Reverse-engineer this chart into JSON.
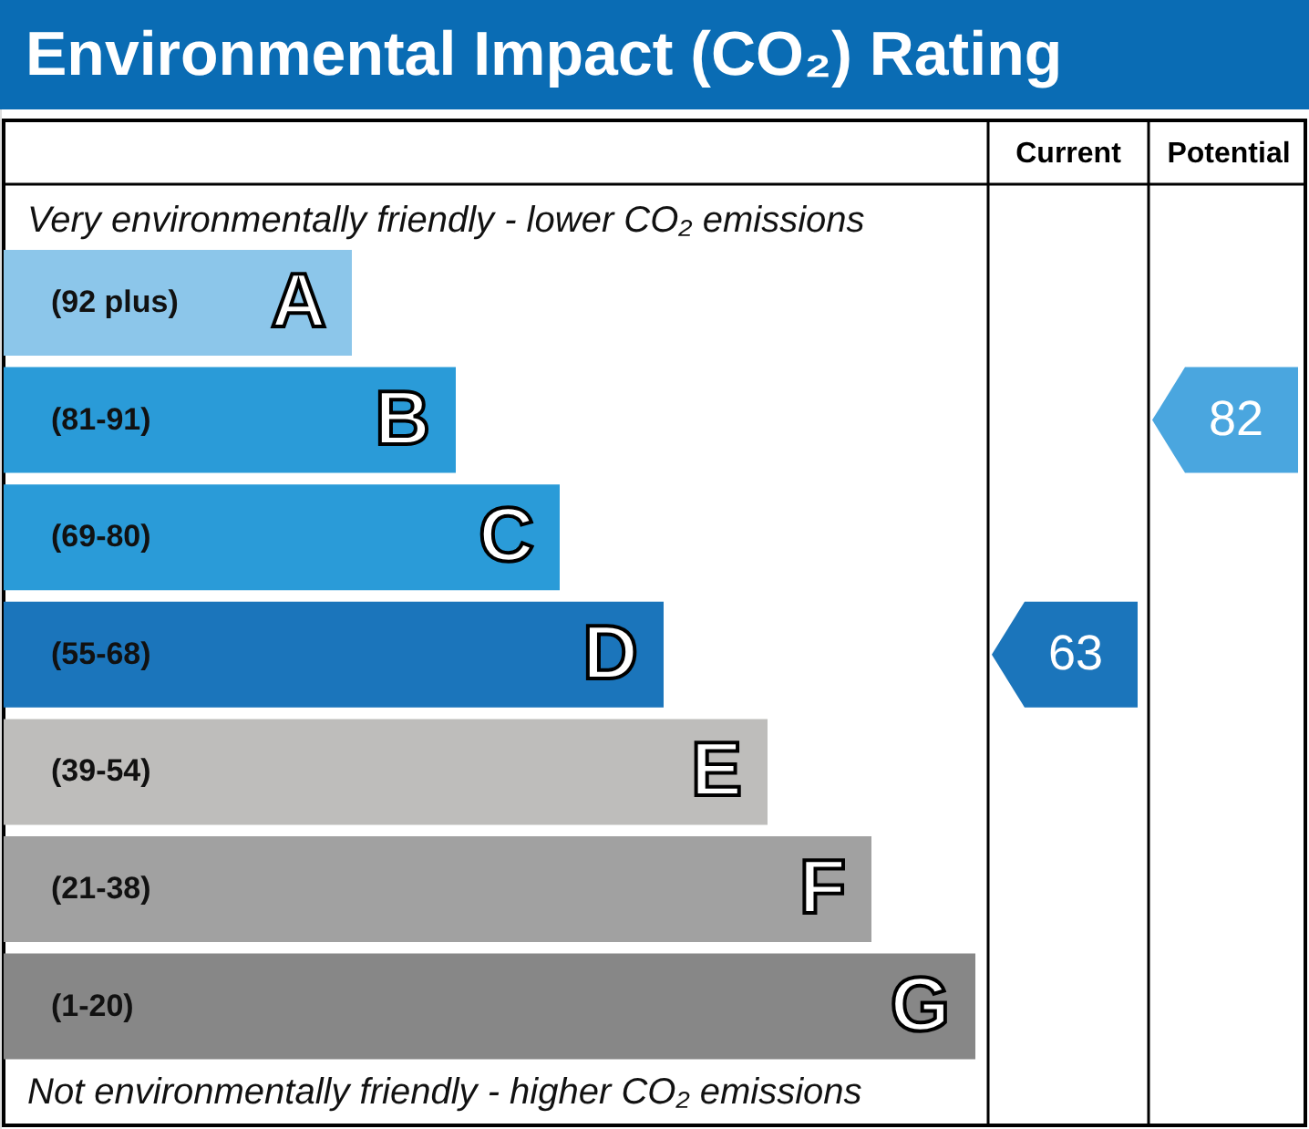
{
  "chart_data": {
    "type": "other",
    "title": "Environmental Impact (CO₂) Rating",
    "categories": [
      "A",
      "B",
      "C",
      "D",
      "E",
      "F",
      "G"
    ],
    "value_labels": [
      "(92 plus)",
      "(81-91)",
      "(69-80)",
      "(55-68)",
      "(39-54)",
      "(21-38)",
      "(1-20)"
    ],
    "colors": [
      "#8cc6ea",
      "#2a9bd8",
      "#2a9bd8",
      "#1b75bb",
      "#bebdbb",
      "#a1a1a1",
      "#878787"
    ],
    "series": [
      {
        "color": "#1b75bb",
        "values": [
          null,
          null,
          null,
          63,
          null,
          null,
          null
        ]
      },
      {
        "color": "#4aa6df",
        "values": [
          null,
          82,
          null,
          null,
          null,
          null,
          null
        ]
      }
    ],
    "data_labels": true,
    "annotations": [
      "Very environmentally friendly - lower CO₂ emissions",
      "Not environmentally friendly - higher CO₂ emissions",
      "Current",
      "Potential"
    ]
  }
}
